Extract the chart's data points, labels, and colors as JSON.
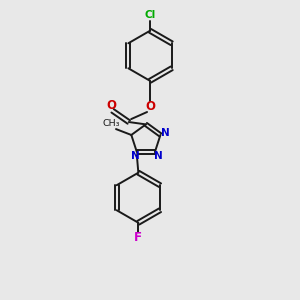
{
  "background_color": "#e8e8e8",
  "bond_color": "#1a1a1a",
  "atom_colors": {
    "Cl": "#00aa00",
    "O": "#cc0000",
    "N": "#0000cc",
    "F": "#cc00cc"
  },
  "figsize": [
    3.0,
    3.0
  ],
  "dpi": 100
}
